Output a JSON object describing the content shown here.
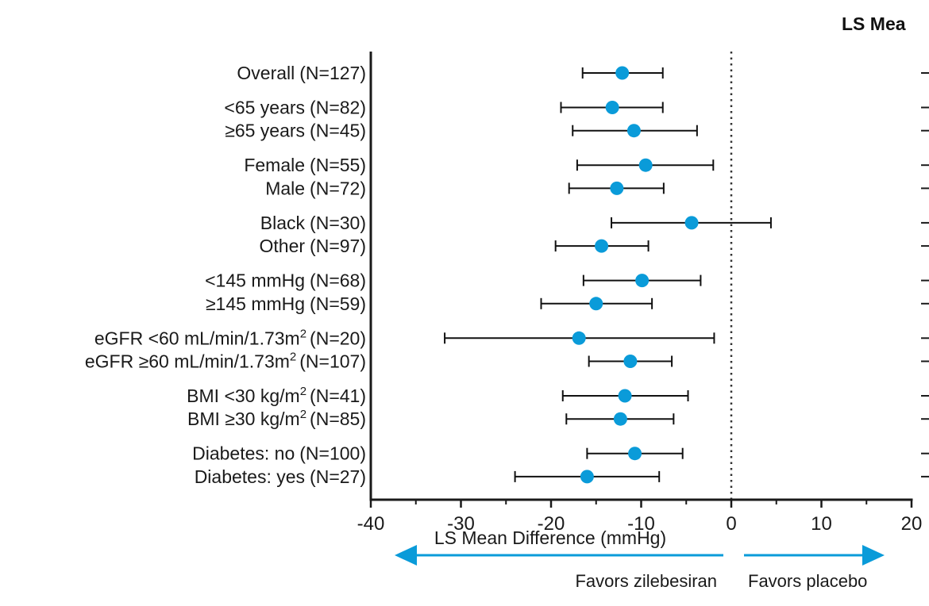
{
  "chart_data": {
    "type": "forest",
    "xlabel": "LS Mean Difference (mmHg)",
    "xlim": [
      -40,
      20
    ],
    "xticks": [
      "-40",
      "-30",
      "-20",
      "-10",
      "0",
      "10",
      "20"
    ],
    "xtick_values": [
      -40,
      -30,
      -20,
      -10,
      0,
      10,
      20
    ],
    "reference_line": 0,
    "column_header": "LS Mea",
    "marker_color": "#0a9bd9",
    "arrow_color": "#0a9bd9",
    "favors_left": "Favors zilebesiran",
    "favors_right": "Favors placebo",
    "groups": [
      {
        "rows": [
          {
            "label": "Overall",
            "n": "(N=127)",
            "estimate": -12.1,
            "lower": -16.5,
            "upper": -7.6
          }
        ]
      },
      {
        "rows": [
          {
            "label": "<65 years",
            "n": "(N=82)",
            "estimate": -13.2,
            "lower": -18.9,
            "upper": -7.6
          },
          {
            "label": "≥65 years",
            "n": "(N=45)",
            "estimate": -10.8,
            "lower": -17.6,
            "upper": -3.8
          }
        ]
      },
      {
        "rows": [
          {
            "label": "Female",
            "n": "(N=55)",
            "estimate": -9.5,
            "lower": -17.1,
            "upper": -2.0
          },
          {
            "label": "Male",
            "n": "(N=72)",
            "estimate": -12.7,
            "lower": -18.0,
            "upper": -7.5
          }
        ]
      },
      {
        "rows": [
          {
            "label": "Black",
            "n": "(N=30)",
            "estimate": -4.4,
            "lower": -13.3,
            "upper": 4.4
          },
          {
            "label": "Other",
            "n": "(N=97)",
            "estimate": -14.4,
            "lower": -19.5,
            "upper": -9.2
          }
        ]
      },
      {
        "rows": [
          {
            "label": "<145 mmHg",
            "n": "(N=68)",
            "estimate": -9.9,
            "lower": -16.4,
            "upper": -3.4
          },
          {
            "label": "≥145 mmHg",
            "n": "(N=59)",
            "estimate": -15.0,
            "lower": -21.1,
            "upper": -8.8
          }
        ]
      },
      {
        "rows": [
          {
            "label": "eGFR <60 mL/min/1.73m",
            "sup": "2",
            "n": "(N=20)",
            "estimate": -16.9,
            "lower": -31.8,
            "upper": -1.9
          },
          {
            "label": "eGFR ≥60 mL/min/1.73m",
            "sup": "2",
            "n": "(N=107)",
            "estimate": -11.2,
            "lower": -15.8,
            "upper": -6.6
          }
        ]
      },
      {
        "rows": [
          {
            "label": "BMI <30 kg/m",
            "sup": "2",
            "n": "(N=41)",
            "estimate": -11.8,
            "lower": -18.7,
            "upper": -4.8
          },
          {
            "label": "BMI ≥30 kg/m",
            "sup": "2",
            "n": "(N=85)",
            "estimate": -12.3,
            "lower": -18.3,
            "upper": -6.4
          }
        ]
      },
      {
        "rows": [
          {
            "label": "Diabetes: no",
            "n": "(N=100)",
            "estimate": -10.7,
            "lower": -16.0,
            "upper": -5.4
          },
          {
            "label": "Diabetes: yes",
            "n": "(N=27)",
            "estimate": -16.0,
            "lower": -24.0,
            "upper": -8.0
          }
        ]
      }
    ]
  }
}
